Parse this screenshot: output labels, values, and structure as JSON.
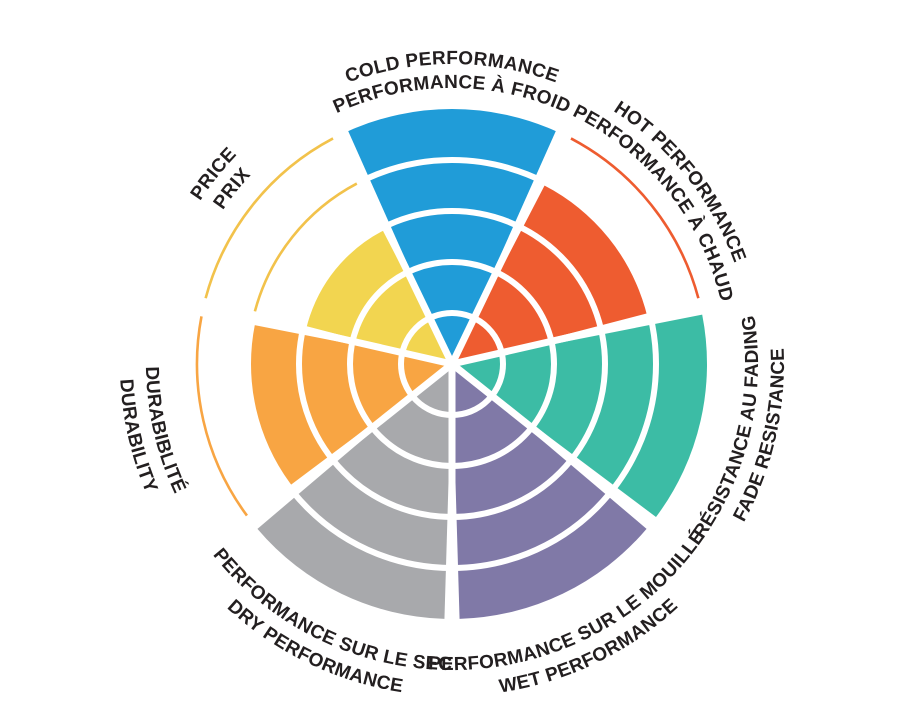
{
  "page": {
    "background": "#FFFFFF"
  },
  "chart_data": {
    "type": "radial-rating-wheel",
    "description": "Tire performance rating wheel with 7 pie sectors, each filled to a level out of 5 concentric rings; unfilled rings of some sectors are marked with thin colored outline arcs",
    "max_level": 5,
    "text_color": "#231F20",
    "divider_color": "#FFFFFF",
    "sectors": [
      {
        "id": "cold-performance",
        "line1": "COLD PERFORMANCE",
        "line2": "PERFORMANCE À FROID",
        "value": 5,
        "color": "#209CD8",
        "outline_rings": []
      },
      {
        "id": "hot-performance",
        "line1": "HOT PERFORMANCE",
        "line2": "PERFORMANCE À CHAUD",
        "value": 4,
        "color": "#EE5C30",
        "outline_rings": [
          5
        ],
        "outline_color": "#EE5C30"
      },
      {
        "id": "fade-resistance",
        "line1": "RÉSISTANCE AU FADING",
        "line2": "FADE RESISTANCE",
        "value": 5,
        "color": "#3CBCA5",
        "outline_rings": []
      },
      {
        "id": "wet-performance",
        "line1": "PERFORMANCE SUR LE MOUILLÉ",
        "line2": "WET PERFORMANCE",
        "value": 5,
        "color": "#8079A7",
        "outline_rings": []
      },
      {
        "id": "dry-performance",
        "line1": "PERFORMANCE SUR LE SEC",
        "line2": "DRY PERFORMANCE",
        "value": 5,
        "color": "#A8A9AC",
        "outline_rings": []
      },
      {
        "id": "durability",
        "line1": "DURABIBLITÉ",
        "line2": "DURABILITY",
        "value": 4,
        "color": "#F8A543",
        "outline_rings": [
          5
        ],
        "outline_color": "#F8A543"
      },
      {
        "id": "price",
        "line1": "PRICE",
        "line2": "PRIX",
        "value": 3,
        "color": "#F2D550",
        "outline_rings": [
          4,
          5
        ],
        "outline_color": "#F2C24B"
      }
    ]
  }
}
